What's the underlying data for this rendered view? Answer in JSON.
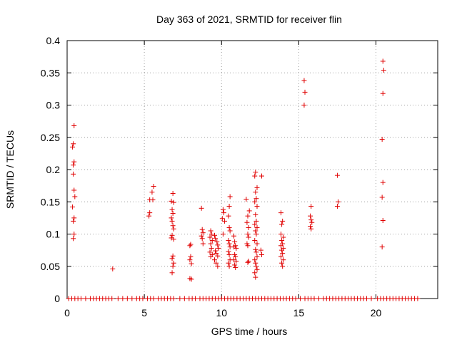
{
  "chart_data": {
    "type": "scatter",
    "title": "Day 363 of 2021, SRMTID for receiver flin",
    "xlabel": "GPS time / hours",
    "ylabel": "SRMTID / TECUs",
    "xlim": [
      0,
      24
    ],
    "ylim": [
      0,
      0.4
    ],
    "xticks": [
      0,
      5,
      10,
      15,
      20
    ],
    "xtick_labels": [
      "0",
      "5",
      "10",
      "15",
      "20"
    ],
    "yticks": [
      0,
      0.05,
      0.1,
      0.15,
      0.2,
      0.25,
      0.3,
      0.35,
      0.4
    ],
    "ytick_labels": [
      "0",
      "0.05",
      "0.1",
      "0.15",
      "0.2",
      "0.25",
      "0.3",
      "0.35",
      "0.4"
    ],
    "grid": true,
    "marker": "plus",
    "marker_color": "#e00000",
    "series": [
      {
        "points": [
          [
            0.45,
            0.268
          ],
          [
            0.4,
            0.24
          ],
          [
            0.35,
            0.235
          ],
          [
            0.45,
            0.212
          ],
          [
            0.4,
            0.207
          ],
          [
            0.4,
            0.193
          ],
          [
            0.45,
            0.168
          ],
          [
            0.5,
            0.158
          ],
          [
            0.35,
            0.142
          ],
          [
            0.45,
            0.125
          ],
          [
            0.4,
            0.12
          ],
          [
            0.45,
            0.1
          ],
          [
            0.4,
            0.093
          ],
          [
            2.95,
            0.046
          ],
          [
            5.6,
            0.174
          ],
          [
            5.5,
            0.165
          ],
          [
            5.35,
            0.153
          ],
          [
            5.55,
            0.153
          ],
          [
            5.35,
            0.133
          ],
          [
            5.3,
            0.128
          ],
          [
            6.85,
            0.163
          ],
          [
            6.75,
            0.151
          ],
          [
            6.9,
            0.149
          ],
          [
            6.8,
            0.138
          ],
          [
            6.85,
            0.132
          ],
          [
            6.75,
            0.125
          ],
          [
            6.8,
            0.12
          ],
          [
            6.85,
            0.113
          ],
          [
            6.9,
            0.108
          ],
          [
            6.8,
            0.098
          ],
          [
            6.75,
            0.094
          ],
          [
            6.9,
            0.092
          ],
          [
            6.85,
            0.066
          ],
          [
            6.8,
            0.062
          ],
          [
            6.9,
            0.055
          ],
          [
            6.85,
            0.05
          ],
          [
            6.8,
            0.04
          ],
          [
            8.0,
            0.084
          ],
          [
            7.95,
            0.082
          ],
          [
            8.0,
            0.065
          ],
          [
            7.95,
            0.06
          ],
          [
            8.05,
            0.054
          ],
          [
            7.95,
            0.031
          ],
          [
            8.05,
            0.03
          ],
          [
            8.7,
            0.14
          ],
          [
            8.75,
            0.107
          ],
          [
            8.8,
            0.102
          ],
          [
            8.7,
            0.097
          ],
          [
            8.75,
            0.093
          ],
          [
            8.8,
            0.085
          ],
          [
            9.3,
            0.105
          ],
          [
            9.35,
            0.1
          ],
          [
            9.25,
            0.095
          ],
          [
            9.4,
            0.09
          ],
          [
            9.3,
            0.085
          ],
          [
            9.35,
            0.078
          ],
          [
            9.25,
            0.072
          ],
          [
            9.4,
            0.068
          ],
          [
            9.3,
            0.065
          ],
          [
            9.55,
            0.098
          ],
          [
            9.6,
            0.093
          ],
          [
            9.7,
            0.088
          ],
          [
            9.75,
            0.083
          ],
          [
            9.8,
            0.078
          ],
          [
            9.6,
            0.074
          ],
          [
            9.65,
            0.07
          ],
          [
            9.75,
            0.066
          ],
          [
            9.55,
            0.06
          ],
          [
            9.65,
            0.055
          ],
          [
            9.75,
            0.05
          ],
          [
            10.1,
            0.138
          ],
          [
            10.15,
            0.133
          ],
          [
            10.05,
            0.124
          ],
          [
            10.2,
            0.12
          ],
          [
            10.1,
            0.1
          ],
          [
            10.55,
            0.158
          ],
          [
            10.5,
            0.143
          ],
          [
            10.45,
            0.128
          ],
          [
            10.5,
            0.11
          ],
          [
            10.55,
            0.105
          ],
          [
            10.45,
            0.09
          ],
          [
            10.5,
            0.085
          ],
          [
            10.55,
            0.08
          ],
          [
            10.45,
            0.073
          ],
          [
            10.5,
            0.068
          ],
          [
            10.55,
            0.06
          ],
          [
            10.45,
            0.055
          ],
          [
            10.5,
            0.05
          ],
          [
            10.8,
            0.097
          ],
          [
            10.85,
            0.088
          ],
          [
            10.9,
            0.082
          ],
          [
            10.8,
            0.08
          ],
          [
            10.95,
            0.078
          ],
          [
            10.85,
            0.068
          ],
          [
            10.9,
            0.065
          ],
          [
            10.8,
            0.06
          ],
          [
            10.95,
            0.058
          ],
          [
            10.85,
            0.052
          ],
          [
            10.9,
            0.048
          ],
          [
            11.6,
            0.154
          ],
          [
            11.8,
            0.136
          ],
          [
            11.7,
            0.128
          ],
          [
            11.65,
            0.118
          ],
          [
            11.75,
            0.11
          ],
          [
            11.7,
            0.1
          ],
          [
            11.75,
            0.095
          ],
          [
            11.65,
            0.085
          ],
          [
            11.7,
            0.082
          ],
          [
            11.75,
            0.058
          ],
          [
            11.7,
            0.056
          ],
          [
            12.2,
            0.196
          ],
          [
            12.15,
            0.19
          ],
          [
            12.3,
            0.172
          ],
          [
            12.2,
            0.165
          ],
          [
            12.25,
            0.155
          ],
          [
            12.15,
            0.15
          ],
          [
            12.3,
            0.143
          ],
          [
            12.2,
            0.13
          ],
          [
            12.25,
            0.12
          ],
          [
            12.15,
            0.115
          ],
          [
            12.3,
            0.11
          ],
          [
            12.2,
            0.105
          ],
          [
            12.25,
            0.1
          ],
          [
            12.15,
            0.09
          ],
          [
            12.3,
            0.085
          ],
          [
            12.2,
            0.076
          ],
          [
            12.25,
            0.072
          ],
          [
            12.3,
            0.065
          ],
          [
            12.15,
            0.06
          ],
          [
            12.2,
            0.055
          ],
          [
            12.25,
            0.05
          ],
          [
            12.3,
            0.045
          ],
          [
            12.15,
            0.04
          ],
          [
            12.2,
            0.033
          ],
          [
            12.6,
            0.19
          ],
          [
            12.55,
            0.075
          ],
          [
            12.6,
            0.068
          ],
          [
            13.85,
            0.133
          ],
          [
            13.95,
            0.12
          ],
          [
            13.9,
            0.115
          ],
          [
            13.85,
            0.1
          ],
          [
            14.0,
            0.095
          ],
          [
            13.9,
            0.09
          ],
          [
            13.95,
            0.085
          ],
          [
            13.85,
            0.082
          ],
          [
            14.0,
            0.078
          ],
          [
            13.9,
            0.075
          ],
          [
            13.95,
            0.07
          ],
          [
            13.85,
            0.065
          ],
          [
            14.0,
            0.06
          ],
          [
            13.9,
            0.055
          ],
          [
            13.95,
            0.05
          ],
          [
            15.35,
            0.338
          ],
          [
            15.4,
            0.32
          ],
          [
            15.35,
            0.3
          ],
          [
            15.8,
            0.143
          ],
          [
            15.75,
            0.128
          ],
          [
            15.8,
            0.122
          ],
          [
            15.85,
            0.118
          ],
          [
            15.75,
            0.112
          ],
          [
            15.8,
            0.108
          ],
          [
            17.5,
            0.191
          ],
          [
            17.55,
            0.15
          ],
          [
            17.5,
            0.143
          ],
          [
            20.45,
            0.368
          ],
          [
            20.5,
            0.354
          ],
          [
            20.45,
            0.318
          ],
          [
            20.4,
            0.247
          ],
          [
            20.45,
            0.18
          ],
          [
            20.4,
            0.157
          ],
          [
            20.45,
            0.121
          ],
          [
            20.4,
            0.08
          ]
        ]
      }
    ],
    "baseline_points_x": [
      0.1,
      0.3,
      0.5,
      0.7,
      0.9,
      1.2,
      1.5,
      1.7,
      1.9,
      2.1,
      2.3,
      2.5,
      2.7,
      2.9,
      3.3,
      3.6,
      3.9,
      4.2,
      4.5,
      4.7,
      4.9,
      5.2,
      5.4,
      5.6,
      5.9,
      6.1,
      6.3,
      6.5,
      6.7,
      6.9,
      7.3,
      7.6,
      7.9,
      8.1,
      8.3,
      8.6,
      8.8,
      9.0,
      9.2,
      9.4,
      9.6,
      9.8,
      10.0,
      10.2,
      10.4,
      10.6,
      10.8,
      11.0,
      11.2,
      11.4,
      11.6,
      11.8,
      12.0,
      12.2,
      12.4,
      12.6,
      12.8,
      13.0,
      13.2,
      13.4,
      13.6,
      13.8,
      14.0,
      14.2,
      14.4,
      14.6,
      14.8,
      15.1,
      15.4,
      15.6,
      15.8,
      16.0,
      16.3,
      16.6,
      16.8,
      17.0,
      17.2,
      17.4,
      17.6,
      17.8,
      18.0,
      18.2,
      18.4,
      18.6,
      18.8,
      19.0,
      19.2,
      19.4,
      19.7,
      20.1,
      20.3,
      20.5,
      20.7,
      20.9,
      21.1,
      21.3,
      21.5,
      21.7,
      21.9,
      22.1,
      22.3,
      22.5,
      22.7
    ]
  }
}
